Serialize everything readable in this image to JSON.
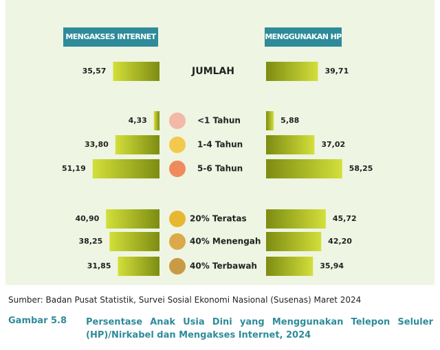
{
  "chart_data": {
    "type": "butterfly",
    "categories": [
      "JUMLAH",
      "<1 Tahun",
      "1-4 Tahun",
      "5-6 Tahun",
      "20% Teratas",
      "40% Menengah",
      "40% Terbawah"
    ],
    "series": [
      {
        "name": "MENGAKSES INTERNET",
        "color": "#9aa81e",
        "values": [
          35.57,
          4.33,
          33.8,
          51.19,
          40.9,
          38.25,
          31.85
        ],
        "value_labels": [
          "35,57",
          "4,33",
          "33,80",
          "51,19",
          "40,90",
          "38,25",
          "31,85"
        ]
      },
      {
        "name": "MENGGUNAKAN HP",
        "color": "#9aa81e",
        "values": [
          39.71,
          5.88,
          37.02,
          58.25,
          45.72,
          42.2,
          35.94
        ],
        "value_labels": [
          "39,71",
          "5,88",
          "37,02",
          "58,25",
          "45,72",
          "42,20",
          "35,94"
        ]
      }
    ],
    "source": "Sumber: Badan Pusat Statistik, Survei Sosial Ekonomi Nasional (Susenas) Maret 2024",
    "figure_number": "Gambar 5.8",
    "caption": "Persentase Anak Usia Dini yang Menggunakan Telepon Seluler (HP)/Nirkabel dan Mengakses Internet, 2024"
  }
}
